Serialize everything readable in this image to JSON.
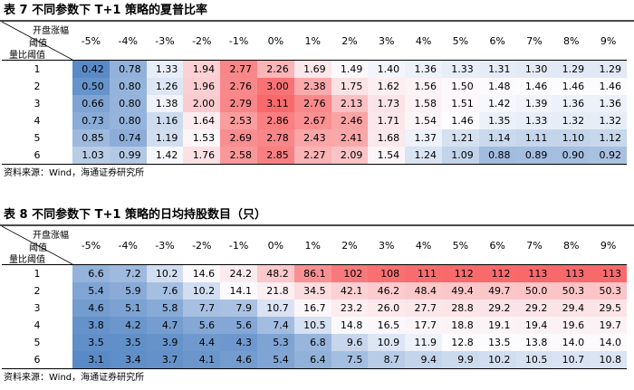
{
  "header_row": {
    "corner_top": "开盘涨幅",
    "corner_mid": "阈值",
    "corner_bottom": "量比阈值",
    "columns": [
      "-5%",
      "-4%",
      "-3%",
      "-2%",
      "-1%",
      "0%",
      "1%",
      "2%",
      "3%",
      "4%",
      "5%",
      "6%",
      "7%",
      "8%",
      "9%"
    ]
  },
  "row_labels": [
    "1",
    "2",
    "3",
    "4",
    "5",
    "6"
  ],
  "table7": {
    "title": "表 7  不同参数下 T+1 策略的夏普比率",
    "values": [
      [
        "0.42",
        "0.78",
        "1.33",
        "1.94",
        "2.77",
        "2.26",
        "1.69",
        "1.49",
        "1.40",
        "1.36",
        "1.33",
        "1.31",
        "1.30",
        "1.29",
        "1.29"
      ],
      [
        "0.50",
        "0.80",
        "1.26",
        "1.96",
        "2.76",
        "3.00",
        "2.38",
        "1.75",
        "1.62",
        "1.56",
        "1.50",
        "1.48",
        "1.46",
        "1.46",
        "1.46"
      ],
      [
        "0.66",
        "0.80",
        "1.38",
        "2.00",
        "2.79",
        "3.11",
        "2.76",
        "2.13",
        "1.73",
        "1.58",
        "1.51",
        "1.42",
        "1.39",
        "1.36",
        "1.36"
      ],
      [
        "0.73",
        "0.80",
        "1.16",
        "1.64",
        "2.53",
        "2.86",
        "2.67",
        "2.46",
        "1.71",
        "1.54",
        "1.46",
        "1.35",
        "1.33",
        "1.32",
        "1.32"
      ],
      [
        "0.85",
        "0.74",
        "1.19",
        "1.53",
        "2.69",
        "2.78",
        "2.43",
        "2.41",
        "1.68",
        "1.37",
        "1.21",
        "1.14",
        "1.11",
        "1.10",
        "1.12"
      ],
      [
        "1.03",
        "0.99",
        "1.42",
        "1.76",
        "2.58",
        "2.85",
        "2.27",
        "2.09",
        "1.54",
        "1.24",
        "1.09",
        "0.88",
        "0.89",
        "0.90",
        "0.92"
      ]
    ],
    "source": "资料来源：Wind，海通证券研究所"
  },
  "table8": {
    "title": "表 8  不同参数下 T+1 策略的日均持股数目（只）",
    "values": [
      [
        "6.6",
        "7.2",
        "10.2",
        "14.6",
        "24.2",
        "48.2",
        "86.1",
        "102",
        "108",
        "111",
        "112",
        "112",
        "113",
        "113",
        "113"
      ],
      [
        "5.4",
        "5.9",
        "7.6",
        "10.2",
        "14.1",
        "21.8",
        "34.5",
        "42.1",
        "46.2",
        "48.4",
        "49.4",
        "49.7",
        "50.0",
        "50.3",
        "50.3"
      ],
      [
        "4.6",
        "5.1",
        "5.8",
        "7.7",
        "7.9",
        "10.7",
        "16.7",
        "23.2",
        "26.0",
        "27.7",
        "28.8",
        "29.2",
        "29.2",
        "29.4",
        "29.5"
      ],
      [
        "3.8",
        "4.2",
        "4.7",
        "5.6",
        "5.6",
        "7.4",
        "10.5",
        "14.8",
        "16.5",
        "17.7",
        "18.8",
        "19.1",
        "19.4",
        "19.6",
        "19.7"
      ],
      [
        "3.5",
        "3.5",
        "3.9",
        "4.4",
        "4.3",
        "5.3",
        "6.8",
        "9.6",
        "10.9",
        "11.9",
        "12.8",
        "13.5",
        "13.8",
        "14.0",
        "14.0"
      ],
      [
        "3.1",
        "3.4",
        "3.7",
        "4.1",
        "4.6",
        "5.4",
        "6.4",
        "7.5",
        "8.7",
        "9.4",
        "9.9",
        "10.2",
        "10.5",
        "10.7",
        "10.8"
      ]
    ],
    "source": "资料来源：Wind，海通证券研究所"
  },
  "color_scale": {
    "low": "#5a8ac6",
    "mid": "#fcfcff",
    "high": "#f8696b"
  }
}
